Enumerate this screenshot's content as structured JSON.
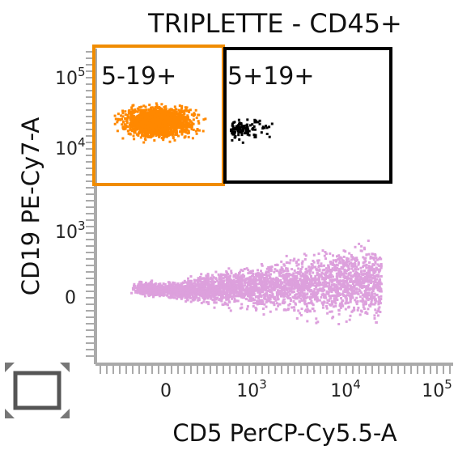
{
  "chart_data": {
    "type": "scatter",
    "title": "TRIPLETTE - CD45+",
    "xlabel": "CD5 PerCP-Cy5.5-A",
    "ylabel": "CD19 PE-Cy7-A",
    "x_scale": "biexponential",
    "y_scale": "biexponential",
    "xlim": [
      -300,
      100000
    ],
    "ylim": [
      -300,
      100000
    ],
    "x_ticks": [
      {
        "value": 0,
        "base": "0",
        "exp": ""
      },
      {
        "value": 1000,
        "base": "10",
        "exp": "3"
      },
      {
        "value": 10000,
        "base": "10",
        "exp": "4"
      },
      {
        "value": 100000,
        "base": "10",
        "exp": "5"
      }
    ],
    "y_ticks": [
      {
        "value": 0,
        "base": "0",
        "exp": ""
      },
      {
        "value": 1000,
        "base": "10",
        "exp": "3"
      },
      {
        "value": 10000,
        "base": "10",
        "exp": "4"
      },
      {
        "value": 100000,
        "base": "10",
        "exp": "5"
      }
    ],
    "gates": [
      {
        "label": "5-19+",
        "color": "#f08c00",
        "x_range": [
          -300,
          500
        ],
        "y_range": [
          3500,
          100000
        ]
      },
      {
        "label": "5+19+",
        "color": "#000000",
        "x_range": [
          500,
          40000
        ],
        "y_range": [
          3500,
          100000
        ]
      }
    ],
    "populations": [
      {
        "gate": "5-19+",
        "color": "#ff8800"
      },
      {
        "gate": "5+19+",
        "color": "#000000"
      },
      {
        "gate": "ungated",
        "color": "#dda0dd"
      }
    ]
  },
  "toolbar": {
    "frame_icon": "frame-corners-icon"
  }
}
